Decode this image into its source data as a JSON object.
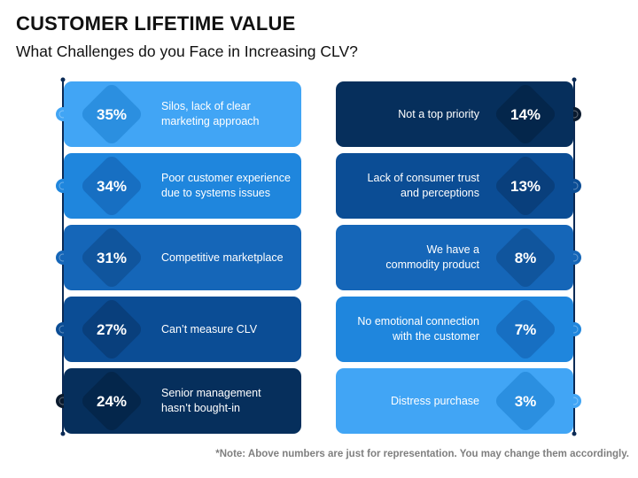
{
  "title": "CUSTOMER LIFETIME VALUE",
  "subtitle": "What Challenges do you Face in Increasing CLV?",
  "note": "*Note: Above numbers are just for representation. You may change them accordingly.",
  "left_items": [
    {
      "percent": "35%",
      "label": "Silos, lack of clear\nmarketing approach",
      "color": "#41a5f5",
      "diamond": "#2b8fe0",
      "dot": "#41a5f5"
    },
    {
      "percent": "34%",
      "label": "Poor customer experience\ndue to systems issues",
      "color": "#1f86dd",
      "diamond": "#176fc2",
      "dot": "#1f86dd"
    },
    {
      "percent": "31%",
      "label": "Competitive marketplace",
      "color": "#1566b8",
      "diamond": "#10559d",
      "dot": "#1566b8"
    },
    {
      "percent": "27%",
      "label": "Can’t measure CLV",
      "color": "#0b4d95",
      "diamond": "#093f7c",
      "dot": "#0b4d95"
    },
    {
      "percent": "24%",
      "label": "Senior management\nhasn’t bought-in",
      "color": "#062f5c",
      "diamond": "#04264b",
      "dot": "#0a1a2e"
    }
  ],
  "right_items": [
    {
      "percent": "14%",
      "label": "Not a top priority",
      "color": "#062f5c",
      "diamond": "#04264b",
      "dot": "#0a1a2e"
    },
    {
      "percent": "13%",
      "label": "Lack of consumer trust\nand perceptions",
      "color": "#0b4d95",
      "diamond": "#093f7c",
      "dot": "#0b4d95"
    },
    {
      "percent": "8%",
      "label": "We have a\ncommodity product",
      "color": "#1566b8",
      "diamond": "#10559d",
      "dot": "#1566b8"
    },
    {
      "percent": "7%",
      "label": "No emotional connection\nwith the customer",
      "color": "#1f86dd",
      "diamond": "#176fc2",
      "dot": "#1f86dd"
    },
    {
      "percent": "3%",
      "label": "Distress purchase",
      "color": "#41a5f5",
      "diamond": "#2b8fe0",
      "dot": "#41a5f5"
    }
  ],
  "line_color": "#0b2a55"
}
